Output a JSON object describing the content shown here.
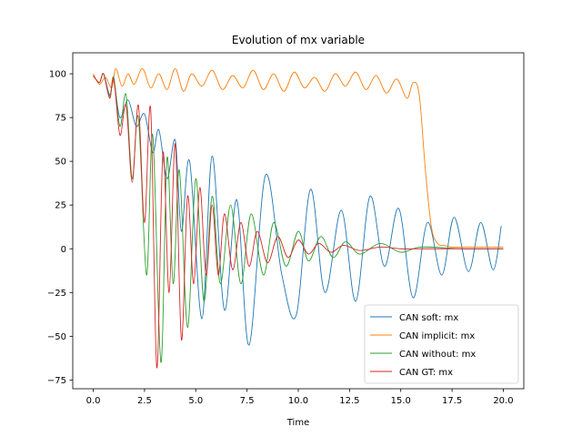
{
  "chart_data": {
    "type": "line",
    "title": "Evolution of mx variable",
    "xlabel": "Time",
    "ylabel": "",
    "xlim": [
      -1.0,
      21.0
    ],
    "ylim": [
      -80,
      112
    ],
    "xticks": [
      0.0,
      2.5,
      5.0,
      7.5,
      10.0,
      12.5,
      15.0,
      17.5,
      20.0
    ],
    "xtick_labels": [
      "0.0",
      "2.5",
      "5.0",
      "7.5",
      "10.0",
      "12.5",
      "15.0",
      "17.5",
      "20.0"
    ],
    "yticks": [
      -75,
      -50,
      -25,
      0,
      25,
      50,
      75,
      100
    ],
    "ytick_labels": [
      "−75",
      "−50",
      "−25",
      "0",
      "25",
      "50",
      "75",
      "100"
    ],
    "grid": false,
    "legend_position": "lower-right",
    "series": [
      {
        "name": "CAN soft: mx",
        "color": "#1f77b4",
        "x": [
          0.0,
          0.3,
          0.5,
          0.8,
          1.0,
          1.3,
          1.7,
          2.1,
          2.5,
          2.9,
          3.2,
          3.6,
          4.0,
          4.3,
          4.7,
          5.3,
          5.8,
          6.4,
          7.0,
          7.6,
          8.4,
          9.2,
          9.9,
          10.6,
          11.3,
          12.1,
          12.8,
          13.5,
          14.2,
          14.9,
          15.6,
          16.3,
          17.0,
          17.6,
          18.3,
          18.9,
          19.5,
          19.9
        ],
        "y": [
          99,
          95,
          100,
          88,
          96,
          75,
          85,
          70,
          77,
          55,
          68,
          40,
          62,
          10,
          50,
          -40,
          53,
          -35,
          28,
          -55,
          42,
          -15,
          -38,
          34,
          -25,
          22,
          -30,
          30,
          -10,
          23,
          -28,
          15,
          -15,
          18,
          -13,
          15,
          -12,
          13
        ]
      },
      {
        "name": "CAN implicit: mx",
        "color": "#ff7f0e",
        "x": [
          0.0,
          0.3,
          0.6,
          0.9,
          1.1,
          1.4,
          1.7,
          2.0,
          2.4,
          2.8,
          3.2,
          3.6,
          4.0,
          4.4,
          4.8,
          5.3,
          5.8,
          6.3,
          6.8,
          7.3,
          7.8,
          8.3,
          8.8,
          9.3,
          9.8,
          10.3,
          10.8,
          11.3,
          11.8,
          12.3,
          12.8,
          13.3,
          13.8,
          14.3,
          14.8,
          15.3,
          15.6,
          15.9,
          16.2,
          16.5,
          16.8,
          17.1,
          17.5,
          18.0,
          19.0,
          20.0
        ],
        "y": [
          100,
          94,
          98,
          92,
          103,
          93,
          100,
          94,
          103,
          92,
          100,
          91,
          103,
          90,
          100,
          93,
          102,
          91,
          99,
          92,
          102,
          91,
          100,
          90,
          101,
          92,
          98,
          90,
          100,
          93,
          101,
          91,
          99,
          89,
          97,
          86,
          95,
          88,
          45,
          12,
          3,
          2,
          1,
          1,
          1,
          1
        ]
      },
      {
        "name": "CAN without: mx",
        "color": "#2ca02c",
        "x": [
          0.0,
          0.3,
          0.5,
          0.8,
          1.0,
          1.3,
          1.6,
          1.9,
          2.2,
          2.6,
          2.9,
          3.3,
          3.6,
          3.9,
          4.2,
          4.6,
          5.0,
          5.4,
          5.8,
          6.2,
          6.7,
          7.2,
          7.7,
          8.3,
          8.8,
          9.4,
          10.0,
          10.5,
          11.1,
          11.7,
          12.3,
          13.0,
          14.0,
          15.0,
          16.0,
          18.0,
          20.0
        ],
        "y": [
          99,
          95,
          100,
          87,
          98,
          70,
          88,
          40,
          75,
          -15,
          65,
          -65,
          52,
          -20,
          45,
          -45,
          40,
          -30,
          30,
          -20,
          25,
          -20,
          20,
          -15,
          15,
          -10,
          10,
          -7,
          7,
          -5,
          4,
          -3,
          3,
          -2,
          1,
          0,
          0
        ]
      },
      {
        "name": "CAN GT: mx",
        "color": "#d62728",
        "x": [
          0.0,
          0.3,
          0.5,
          0.8,
          1.0,
          1.3,
          1.6,
          1.9,
          2.2,
          2.5,
          2.8,
          3.1,
          3.4,
          3.7,
          4.0,
          4.3,
          4.6,
          4.9,
          5.2,
          5.5,
          5.8,
          6.1,
          6.4,
          6.8,
          7.2,
          7.6,
          8.0,
          8.5,
          9.0,
          9.5,
          10.0,
          10.5,
          11.0,
          11.6,
          12.2,
          13.0,
          14.0,
          15.0,
          16.0,
          18.0,
          20.0
        ],
        "y": [
          99,
          95,
          100,
          86,
          97,
          65,
          82,
          38,
          82,
          15,
          80,
          -68,
          55,
          -25,
          60,
          -52,
          30,
          -20,
          35,
          -15,
          25,
          -15,
          20,
          -12,
          15,
          -10,
          10,
          -8,
          7,
          -5,
          5,
          -3,
          3,
          -2,
          2,
          -1,
          1,
          0,
          0,
          0,
          0
        ]
      }
    ]
  }
}
